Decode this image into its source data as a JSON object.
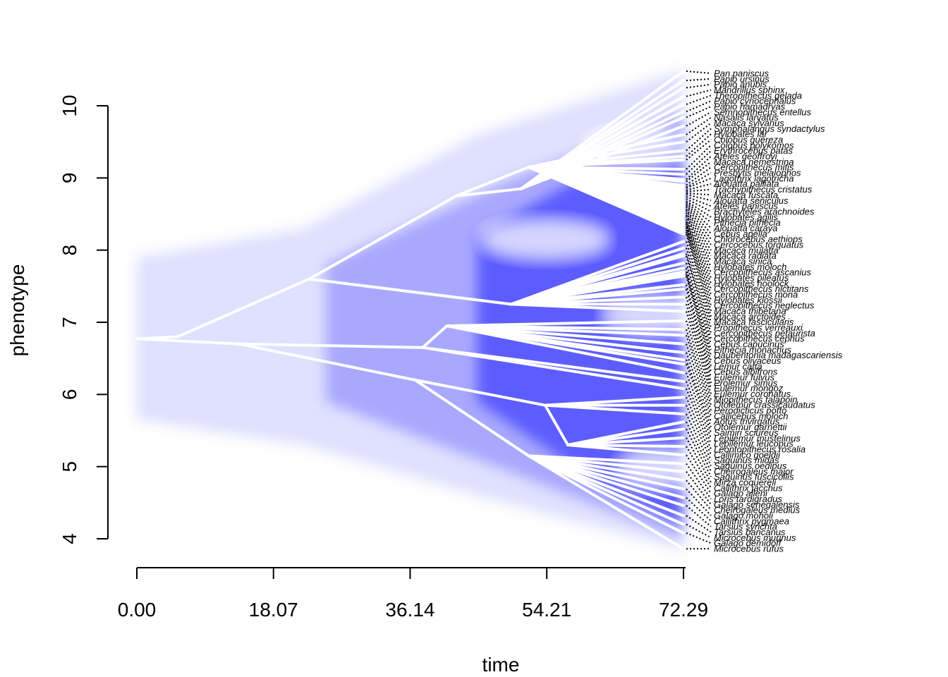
{
  "chart_data": {
    "type": "line",
    "xlabel": "time",
    "ylabel": "phenotype",
    "xlim": [
      0,
      72.29
    ],
    "ylim": [
      4,
      10
    ],
    "x_ticks": [
      "0.00",
      "18.07",
      "36.14",
      "54.21",
      "72.29"
    ],
    "y_ticks": [
      "4",
      "5",
      "6",
      "7",
      "8",
      "9",
      "10"
    ],
    "colors": {
      "density": "#0000ff",
      "branch": "#ffffff"
    },
    "root": {
      "time": 0,
      "value": 6.77
    },
    "internal_nodes": [
      {
        "id": "n1",
        "time": 5.4,
        "value": 6.8
      },
      {
        "id": "n2",
        "time": 13.5,
        "value": 6.7
      },
      {
        "id": "n3",
        "time": 22.8,
        "value": 7.6
      },
      {
        "id": "n4",
        "time": 36.8,
        "value": 6.2
      },
      {
        "id": "n5",
        "time": 42.2,
        "value": 8.75
      },
      {
        "id": "n6",
        "time": 50.8,
        "value": 8.85
      },
      {
        "id": "n7",
        "time": 51.8,
        "value": 9.15
      },
      {
        "id": "n8",
        "time": 37.8,
        "value": 6.65
      },
      {
        "id": "n9",
        "time": 49.5,
        "value": 7.25
      },
      {
        "id": "n10",
        "time": 41.0,
        "value": 6.95
      },
      {
        "id": "n11",
        "time": 51.8,
        "value": 5.15
      },
      {
        "id": "n12",
        "time": 54.0,
        "value": 5.85
      },
      {
        "id": "n13",
        "time": 57.0,
        "value": 5.3
      }
    ],
    "tips": [
      {
        "label": "Pan paniscus",
        "value": 10.48
      },
      {
        "label": "Papio ursinus",
        "value": 10.35
      },
      {
        "label": "Papio anubis",
        "value": 10.25
      },
      {
        "label": "Mandrillus sphinx",
        "value": 10.13
      },
      {
        "label": "Theropithecus gelada",
        "value": 10.02
      },
      {
        "label": "Papio cynocephalus",
        "value": 9.92
      },
      {
        "label": "Papio hamadryas",
        "value": 9.84
      },
      {
        "label": "Semnopithecus entellus",
        "value": 9.72
      },
      {
        "label": "Nasalis larvatus",
        "value": 9.6
      },
      {
        "label": "Macaca sylvanus",
        "value": 9.5
      },
      {
        "label": "Symphalangus syndactylus",
        "value": 9.38
      },
      {
        "label": "Hylobates lar",
        "value": 9.3
      },
      {
        "label": "Colobus guereza",
        "value": 9.25
      },
      {
        "label": "Colobus polykomos",
        "value": 9.12
      },
      {
        "label": "Erythrocebus patas",
        "value": 9.05
      },
      {
        "label": "Ateles geoffroyi",
        "value": 8.98
      },
      {
        "label": "Macaca nemestrina",
        "value": 8.95
      },
      {
        "label": "Cercopithecus mitis",
        "value": 8.9
      },
      {
        "label": "Presbytis melalophos",
        "value": 8.87
      },
      {
        "label": "Lagothrix lagotricha",
        "value": 8.86
      },
      {
        "label": "Alouatta palliata",
        "value": 8.83
      },
      {
        "label": "Trachypithecus cristatus",
        "value": 8.81
      },
      {
        "label": "Macaca fuscata",
        "value": 8.79
      },
      {
        "label": "Alouatta seniculus",
        "value": 8.77
      },
      {
        "label": "Ateles paniscus",
        "value": 8.74
      },
      {
        "label": "Brachyteles arachnoides",
        "value": 8.71
      },
      {
        "label": "Hylobates agilis",
        "value": 8.68
      },
      {
        "label": "Pithecia pithecia",
        "value": 8.66
      },
      {
        "label": "Alouatta caraya",
        "value": 8.64
      },
      {
        "label": "Cebus apella",
        "value": 8.62
      },
      {
        "label": "Chlorocebus aethiops",
        "value": 8.6
      },
      {
        "label": "Cercocebus torquatus",
        "value": 8.57
      },
      {
        "label": "Macaca mulatta",
        "value": 8.55
      },
      {
        "label": "Macaca radiata",
        "value": 8.52
      },
      {
        "label": "Macaca sinica",
        "value": 8.49
      },
      {
        "label": "Hylobates moloch",
        "value": 8.47
      },
      {
        "label": "Cercopithecus ascanius",
        "value": 8.43
      },
      {
        "label": "Hylobates pileatus",
        "value": 8.4
      },
      {
        "label": "Hylobates hoolock",
        "value": 8.38
      },
      {
        "label": "Cercopithecus nictitans",
        "value": 8.36
      },
      {
        "label": "Cercopithecus mona",
        "value": 8.33
      },
      {
        "label": "Hylobates klossii",
        "value": 8.31
      },
      {
        "label": "Cercopithecus neglectus",
        "value": 8.28
      },
      {
        "label": "Macaca thibetana",
        "value": 8.25
      },
      {
        "label": "Macaca arctoides",
        "value": 8.22
      },
      {
        "label": "Macaca fascicularis",
        "value": 8.12
      },
      {
        "label": "Propithecus verreauxi",
        "value": 8.03
      },
      {
        "label": "Cercopithecus petaurista",
        "value": 7.95
      },
      {
        "label": "Cercopithecus cephus",
        "value": 7.92
      },
      {
        "label": "Cebus capucinus",
        "value": 7.82
      },
      {
        "label": "Pithecia monachus",
        "value": 7.75
      },
      {
        "label": "Daubentonia madagascariensis",
        "value": 7.7
      },
      {
        "label": "Cebus olivaceus",
        "value": 7.67
      },
      {
        "label": "Lemur catta",
        "value": 7.64
      },
      {
        "label": "Cebus albifrons",
        "value": 7.52
      },
      {
        "label": "Eulemur fulvus",
        "value": 7.46
      },
      {
        "label": "Prolemur simus",
        "value": 7.35
      },
      {
        "label": "Eulemur mongoz",
        "value": 7.25
      },
      {
        "label": "Eulemur coronatus",
        "value": 7.15
      },
      {
        "label": "Miopithecus talapoin",
        "value": 7.02
      },
      {
        "label": "Otolemur crassicaudatus",
        "value": 6.9
      },
      {
        "label": "Perodicticus potto",
        "value": 6.82
      },
      {
        "label": "Callicebus moloch",
        "value": 6.7
      },
      {
        "label": "Aotus trivirgatus",
        "value": 6.58
      },
      {
        "label": "Otolemur garnettii",
        "value": 6.48
      },
      {
        "label": "Saimiri sciureus",
        "value": 6.42
      },
      {
        "label": "Lepilemur mustelinus",
        "value": 6.3
      },
      {
        "label": "Lepilemur leucopus",
        "value": 6.18
      },
      {
        "label": "Leontopithecus rosalia",
        "value": 6.08
      },
      {
        "label": "Callimico goeldii",
        "value": 5.96
      },
      {
        "label": "Saguinus midas",
        "value": 5.85
      },
      {
        "label": "Saguinus oedipus",
        "value": 5.73
      },
      {
        "label": "Cheirogaleus major",
        "value": 5.62
      },
      {
        "label": "Saguinus fuscicollis",
        "value": 5.52
      },
      {
        "label": "Mirza coquereli",
        "value": 5.4
      },
      {
        "label": "Callithrix jacchus",
        "value": 5.28
      },
      {
        "label": "Galago alleni",
        "value": 5.16
      },
      {
        "label": "Loris tardigradus",
        "value": 5.04
      },
      {
        "label": "Galago senegalensis",
        "value": 4.93
      },
      {
        "label": "Cheirogaleus medius",
        "value": 4.81
      },
      {
        "label": "Galago moholi",
        "value": 4.69
      },
      {
        "label": "Callithrix pygmaea",
        "value": 4.57
      },
      {
        "label": "Tarsius syrichta",
        "value": 4.46
      },
      {
        "label": "Tarsius bancanus",
        "value": 4.32
      },
      {
        "label": "Microcebus murinus",
        "value": 4.2
      },
      {
        "label": "Galago demidoff",
        "value": 4.08
      },
      {
        "label": "Microcebus rufus",
        "value": 3.86
      }
    ],
    "edges": [
      [
        "root",
        "n1"
      ],
      [
        "root",
        "n2"
      ],
      [
        "n1",
        "n3"
      ],
      [
        "n2",
        "n8"
      ],
      [
        "n2",
        "n4"
      ],
      [
        "n3",
        "n5"
      ],
      [
        "n3",
        "n9"
      ],
      [
        "n5",
        "n6"
      ],
      [
        "n5",
        "n7"
      ],
      [
        "n8",
        "n10"
      ],
      [
        "n4",
        "n11"
      ],
      [
        "n4",
        "n12"
      ],
      [
        "n12",
        "n13"
      ]
    ]
  }
}
